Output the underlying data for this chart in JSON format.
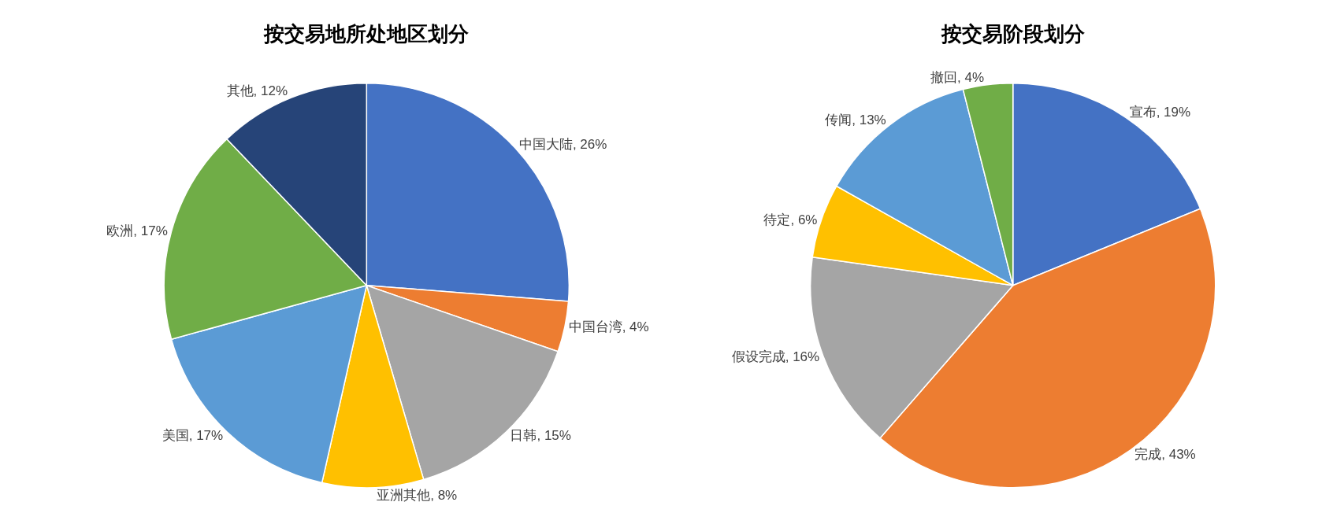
{
  "chart_data": [
    {
      "type": "pie",
      "title": "按交易地所处地区划分",
      "categories": [
        "中国大陆",
        "中国台湾",
        "日韩",
        "亚洲其他",
        "美国",
        "欧洲",
        "其他"
      ],
      "values": [
        26,
        4,
        15,
        8,
        17,
        17,
        12
      ],
      "value_labels": [
        "26%",
        "4%",
        "15%",
        "8%",
        "17%",
        "17%",
        "12%"
      ],
      "colors": [
        "#4472c4",
        "#ed7d31",
        "#a5a5a5",
        "#ffc000",
        "#5b9bd5",
        "#70ad47",
        "#264478"
      ],
      "legend": false
    },
    {
      "type": "pie",
      "title": "按交易阶段划分",
      "categories": [
        "宣布",
        "完成",
        "假设完成",
        "待定",
        "传闻",
        "撤回"
      ],
      "values": [
        19,
        43,
        16,
        6,
        13,
        4
      ],
      "value_labels": [
        "19%",
        "43%",
        "16%",
        "6%",
        "13%",
        "4%"
      ],
      "colors": [
        "#4472c4",
        "#ed7d31",
        "#a5a5a5",
        "#ffc000",
        "#5b9bd5",
        "#70ad47"
      ],
      "legend": false
    }
  ]
}
